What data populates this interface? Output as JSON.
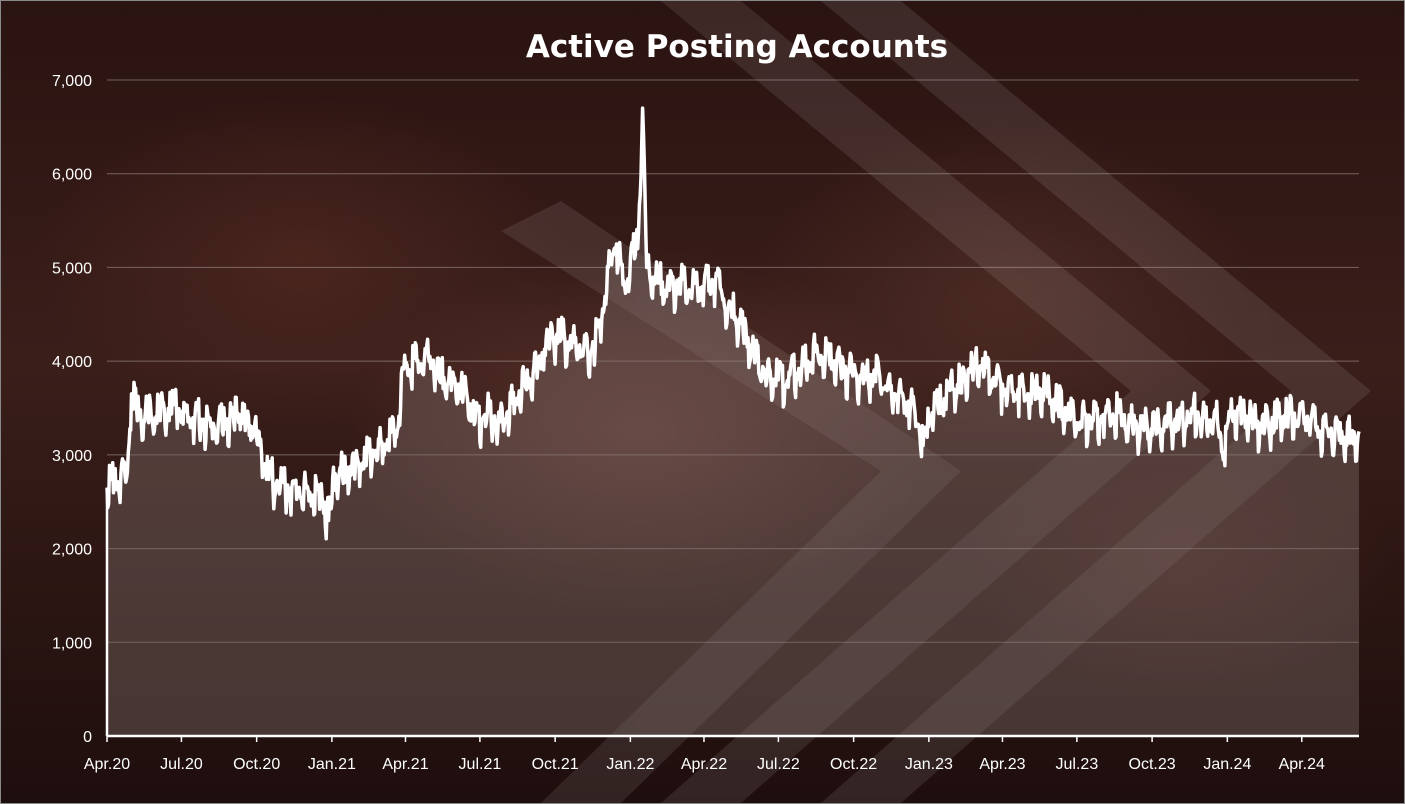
{
  "chart_data": {
    "type": "area",
    "title": "Active Posting Accounts",
    "xlabel": "",
    "ylabel": "",
    "ylim": [
      0,
      7000
    ],
    "y_ticks": [
      0,
      1000,
      2000,
      3000,
      4000,
      5000,
      6000,
      7000
    ],
    "y_tick_labels": [
      "0",
      "1,000",
      "2,000",
      "3,000",
      "4,000",
      "5,000",
      "6,000",
      "7,000"
    ],
    "x_range": [
      "2020-04-01",
      "2024-06-10"
    ],
    "x_ticks": [
      "2020-04-01",
      "2020-07-01",
      "2020-10-01",
      "2021-01-01",
      "2021-04-01",
      "2021-07-01",
      "2021-10-01",
      "2022-01-01",
      "2022-04-01",
      "2022-07-01",
      "2022-10-01",
      "2023-01-01",
      "2023-04-01",
      "2023-07-01",
      "2023-10-01",
      "2024-01-01",
      "2024-04-01"
    ],
    "x_tick_labels": [
      "Apr.20",
      "Jul.20",
      "Oct.20",
      "Jan.21",
      "Apr.21",
      "Jul.21",
      "Oct.21",
      "Jan.22",
      "Apr.22",
      "Jul.22",
      "Oct.22",
      "Jan.23",
      "Apr.23",
      "Jul.23",
      "Oct.23",
      "Jan.24",
      "Apr.24"
    ],
    "grid": true,
    "legend": "none",
    "line_color": "#ffffff",
    "fill_color": "rgba(125,108,104,0.42)",
    "series": [
      {
        "points": [
          [
            "2020-04-01",
            2650
          ],
          [
            "2020-04-10",
            2720
          ],
          [
            "2020-04-18",
            2800
          ],
          [
            "2020-04-25",
            2750
          ],
          [
            "2020-05-01",
            3650
          ],
          [
            "2020-05-10",
            3450
          ],
          [
            "2020-05-25",
            3420
          ],
          [
            "2020-06-10",
            3500
          ],
          [
            "2020-06-25",
            3480
          ],
          [
            "2020-07-10",
            3400
          ],
          [
            "2020-07-25",
            3380
          ],
          [
            "2020-08-10",
            3300
          ],
          [
            "2020-08-25",
            3350
          ],
          [
            "2020-09-10",
            3430
          ],
          [
            "2020-09-25",
            3300
          ],
          [
            "2020-10-05",
            3100
          ],
          [
            "2020-10-15",
            2800
          ],
          [
            "2020-10-25",
            2700
          ],
          [
            "2020-11-05",
            2650
          ],
          [
            "2020-11-20",
            2620
          ],
          [
            "2020-12-05",
            2600
          ],
          [
            "2020-12-20",
            2550
          ],
          [
            "2020-12-28",
            2300
          ],
          [
            "2021-01-05",
            2800
          ],
          [
            "2021-01-20",
            2850
          ],
          [
            "2021-02-05",
            2900
          ],
          [
            "2021-02-20",
            3050
          ],
          [
            "2021-03-05",
            3100
          ],
          [
            "2021-03-20",
            3250
          ],
          [
            "2021-04-01",
            3950
          ],
          [
            "2021-04-15",
            4000
          ],
          [
            "2021-05-01",
            4050
          ],
          [
            "2021-05-15",
            3850
          ],
          [
            "2021-06-01",
            3750
          ],
          [
            "2021-06-15",
            3650
          ],
          [
            "2021-06-25",
            3350
          ],
          [
            "2021-07-10",
            3450
          ],
          [
            "2021-07-25",
            3350
          ],
          [
            "2021-08-10",
            3550
          ],
          [
            "2021-08-25",
            3750
          ],
          [
            "2021-09-10",
            3950
          ],
          [
            "2021-09-25",
            4250
          ],
          [
            "2021-10-10",
            4250
          ],
          [
            "2021-10-25",
            4200
          ],
          [
            "2021-11-10",
            4100
          ],
          [
            "2021-11-25",
            4350
          ],
          [
            "2021-12-05",
            5000
          ],
          [
            "2021-12-15",
            5250
          ],
          [
            "2021-12-25",
            4800
          ],
          [
            "2022-01-01",
            5100
          ],
          [
            "2022-01-10",
            5200
          ],
          [
            "2022-01-16",
            6700
          ],
          [
            "2022-01-21",
            5000
          ],
          [
            "2022-02-01",
            4900
          ],
          [
            "2022-02-15",
            4800
          ],
          [
            "2022-03-01",
            4850
          ],
          [
            "2022-03-15",
            4750
          ],
          [
            "2022-04-01",
            4800
          ],
          [
            "2022-04-15",
            4850
          ],
          [
            "2022-05-01",
            4600
          ],
          [
            "2022-05-15",
            4400
          ],
          [
            "2022-06-01",
            4100
          ],
          [
            "2022-06-15",
            3850
          ],
          [
            "2022-07-01",
            3800
          ],
          [
            "2022-07-15",
            3850
          ],
          [
            "2022-08-01",
            3950
          ],
          [
            "2022-08-15",
            4100
          ],
          [
            "2022-09-01",
            4050
          ],
          [
            "2022-09-15",
            3950
          ],
          [
            "2022-10-01",
            3850
          ],
          [
            "2022-10-15",
            3800
          ],
          [
            "2022-11-01",
            3900
          ],
          [
            "2022-11-15",
            3700
          ],
          [
            "2022-12-01",
            3600
          ],
          [
            "2022-12-15",
            3450
          ],
          [
            "2022-12-25",
            3100
          ],
          [
            "2023-01-05",
            3450
          ],
          [
            "2023-01-20",
            3600
          ],
          [
            "2023-02-05",
            3750
          ],
          [
            "2023-02-20",
            3900
          ],
          [
            "2023-03-05",
            3950
          ],
          [
            "2023-03-20",
            3800
          ],
          [
            "2023-04-05",
            3700
          ],
          [
            "2023-04-20",
            3700
          ],
          [
            "2023-05-05",
            3650
          ],
          [
            "2023-05-20",
            3700
          ],
          [
            "2023-06-05",
            3550
          ],
          [
            "2023-06-20",
            3450
          ],
          [
            "2023-07-05",
            3350
          ],
          [
            "2023-07-20",
            3400
          ],
          [
            "2023-08-05",
            3450
          ],
          [
            "2023-08-20",
            3450
          ],
          [
            "2023-09-05",
            3350
          ],
          [
            "2023-09-20",
            3300
          ],
          [
            "2023-10-05",
            3300
          ],
          [
            "2023-10-20",
            3350
          ],
          [
            "2023-11-05",
            3400
          ],
          [
            "2023-11-20",
            3450
          ],
          [
            "2023-12-05",
            3400
          ],
          [
            "2023-12-20",
            3350
          ],
          [
            "2023-12-28",
            3000
          ],
          [
            "2024-01-05",
            3450
          ],
          [
            "2024-01-20",
            3450
          ],
          [
            "2024-02-05",
            3350
          ],
          [
            "2024-02-20",
            3350
          ],
          [
            "2024-03-05",
            3400
          ],
          [
            "2024-03-20",
            3450
          ],
          [
            "2024-04-05",
            3400
          ],
          [
            "2024-04-20",
            3300
          ],
          [
            "2024-05-05",
            3250
          ],
          [
            "2024-05-20",
            3250
          ],
          [
            "2024-06-01",
            3200
          ],
          [
            "2024-06-10",
            3250
          ]
        ]
      }
    ]
  }
}
